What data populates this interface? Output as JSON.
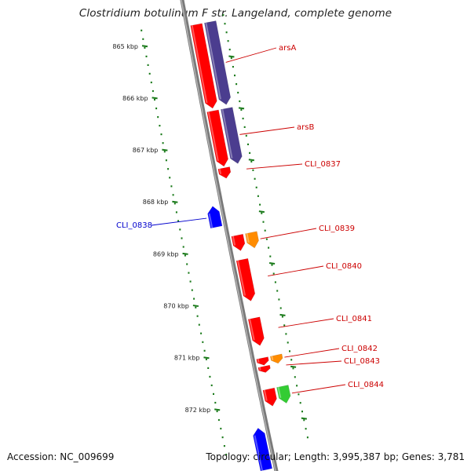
{
  "title": "Clostridium botulinum F str. Langeland, complete genome",
  "footer": {
    "accession": "Accession: NC_009699",
    "summary": "Topology: circular; Length: 3,995,387 bp; Genes: 3,781"
  },
  "colors": {
    "forward_cds": "#ff0000",
    "reverse_cds": "#0000ff",
    "paired_feature": "#4b3d8f",
    "orange_feature": "#ff8c00",
    "green_feature": "#33cc33",
    "tick": "#1a7a1a",
    "backbone": "#888888",
    "label_forward": "#cc0000",
    "label_reverse": "#0000cc"
  },
  "ticks": [
    {
      "label": "865 kbp",
      "kbp": 865
    },
    {
      "label": "866 kbp",
      "kbp": 866
    },
    {
      "label": "867 kbp",
      "kbp": 867
    },
    {
      "label": "868 kbp",
      "kbp": 868
    },
    {
      "label": "869 kbp",
      "kbp": 869
    },
    {
      "label": "870 kbp",
      "kbp": 870
    },
    {
      "label": "871 kbp",
      "kbp": 871
    },
    {
      "label": "872 kbp",
      "kbp": 872
    }
  ],
  "genes": [
    {
      "label": "arsA",
      "start": 864.78,
      "end": 866.4,
      "strand": "+",
      "track": "red"
    },
    {
      "label": "arsB",
      "start": 866.45,
      "end": 867.52,
      "strand": "+",
      "track": "red"
    },
    {
      "label": "CLI_0837",
      "start": 867.55,
      "end": 867.75,
      "strand": "+",
      "track": "red"
    },
    {
      "label": "CLI_0838",
      "start": 868.22,
      "end": 868.62,
      "strand": "-",
      "track": "blue"
    },
    {
      "label": "CLI_0839",
      "start": 868.85,
      "end": 869.15,
      "strand": "+",
      "track": "red"
    },
    {
      "label": "CLI_0840",
      "start": 869.32,
      "end": 870.12,
      "strand": "+",
      "track": "red"
    },
    {
      "label": "CLI_0841",
      "start": 870.45,
      "end": 870.98,
      "strand": "+",
      "track": "red"
    },
    {
      "label": "CLI_0842",
      "start": 871.22,
      "end": 871.36,
      "strand": "+",
      "track": "red"
    },
    {
      "label": "CLI_0843",
      "start": 871.38,
      "end": 871.5,
      "strand": "+",
      "track": "red"
    },
    {
      "label": "CLI_0844",
      "start": 871.82,
      "end": 872.15,
      "strand": "+",
      "track": "red"
    },
    {
      "label": "",
      "start": 872.5,
      "end": 873.3,
      "strand": "-",
      "track": "blue"
    },
    {
      "label": "",
      "start": 864.78,
      "end": 866.38,
      "strand": "+",
      "track": "purple"
    },
    {
      "label": "",
      "start": 866.45,
      "end": 867.52,
      "strand": "+",
      "track": "purple"
    },
    {
      "label": "",
      "start": 868.85,
      "end": 869.15,
      "strand": "+",
      "track": "orange"
    },
    {
      "label": "",
      "start": 871.22,
      "end": 871.38,
      "strand": "+",
      "track": "orange"
    },
    {
      "label": "",
      "start": 871.82,
      "end": 872.15,
      "strand": "+",
      "track": "green"
    }
  ]
}
